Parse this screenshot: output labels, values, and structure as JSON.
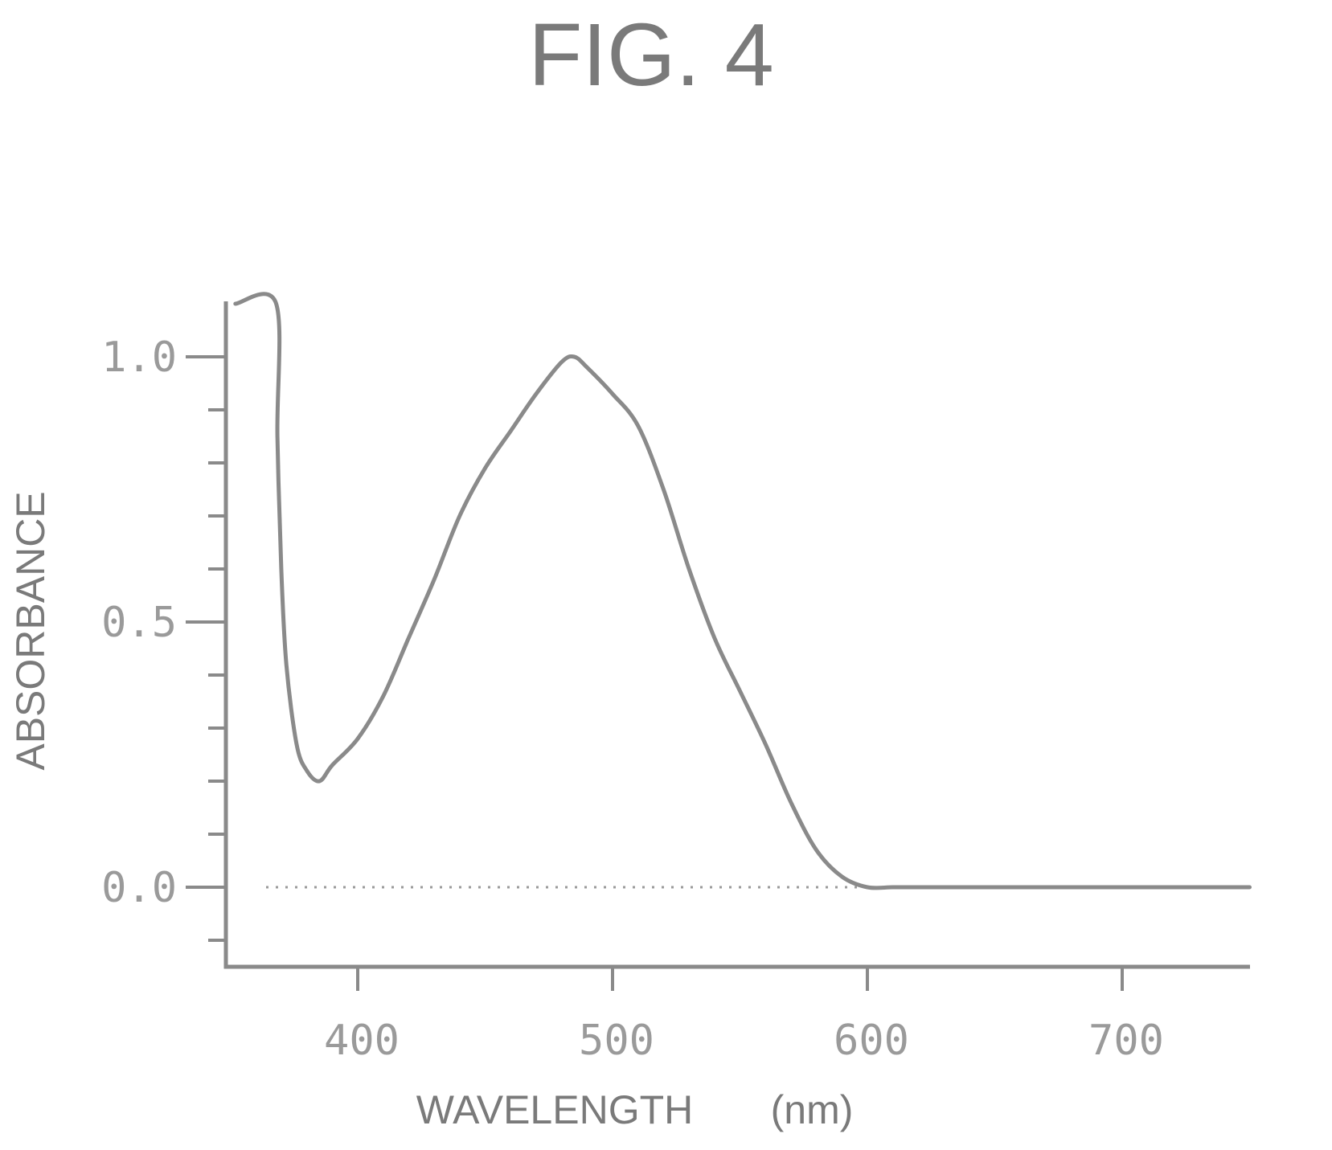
{
  "figure": {
    "title": "FIG. 4"
  },
  "chart_data": {
    "type": "line",
    "xlabel": "WAVELENGTH",
    "xunit": "(nm)",
    "ylabel": "ABSORBANCE",
    "xlim": [
      350,
      750
    ],
    "ylim": [
      -0.15,
      1.1
    ],
    "x_ticks": [
      400,
      500,
      600,
      700
    ],
    "x_tick_labels": [
      "400",
      "500",
      "600",
      "700"
    ],
    "y_ticks": [
      0.0,
      0.5,
      1.0
    ],
    "y_tick_labels": [
      "0.0",
      "0.5",
      "1.0"
    ],
    "y_minor_ticks": [
      -0.1,
      0.1,
      0.2,
      0.3,
      0.4,
      0.6,
      0.7,
      0.8,
      0.9
    ],
    "grid": false,
    "reference_line": {
      "y": 0.0,
      "style": "dotted"
    },
    "series": [
      {
        "x": [
          352,
          368,
          368.5,
          370,
          372,
          376,
          380,
          385,
          390,
          400,
          410,
          420,
          430,
          440,
          450,
          460,
          470,
          480,
          485,
          490,
          500,
          510,
          520,
          530,
          540,
          550,
          560,
          570,
          580,
          590,
          600,
          610,
          620,
          650,
          700,
          750
        ],
        "y": [
          1.1,
          1.1,
          0.85,
          0.6,
          0.42,
          0.27,
          0.22,
          0.2,
          0.23,
          0.28,
          0.36,
          0.47,
          0.58,
          0.7,
          0.79,
          0.86,
          0.93,
          0.99,
          1.0,
          0.98,
          0.93,
          0.87,
          0.75,
          0.6,
          0.47,
          0.37,
          0.27,
          0.16,
          0.07,
          0.02,
          0.0,
          0.0,
          0.0,
          0.0,
          0.0,
          0.0
        ]
      }
    ]
  }
}
